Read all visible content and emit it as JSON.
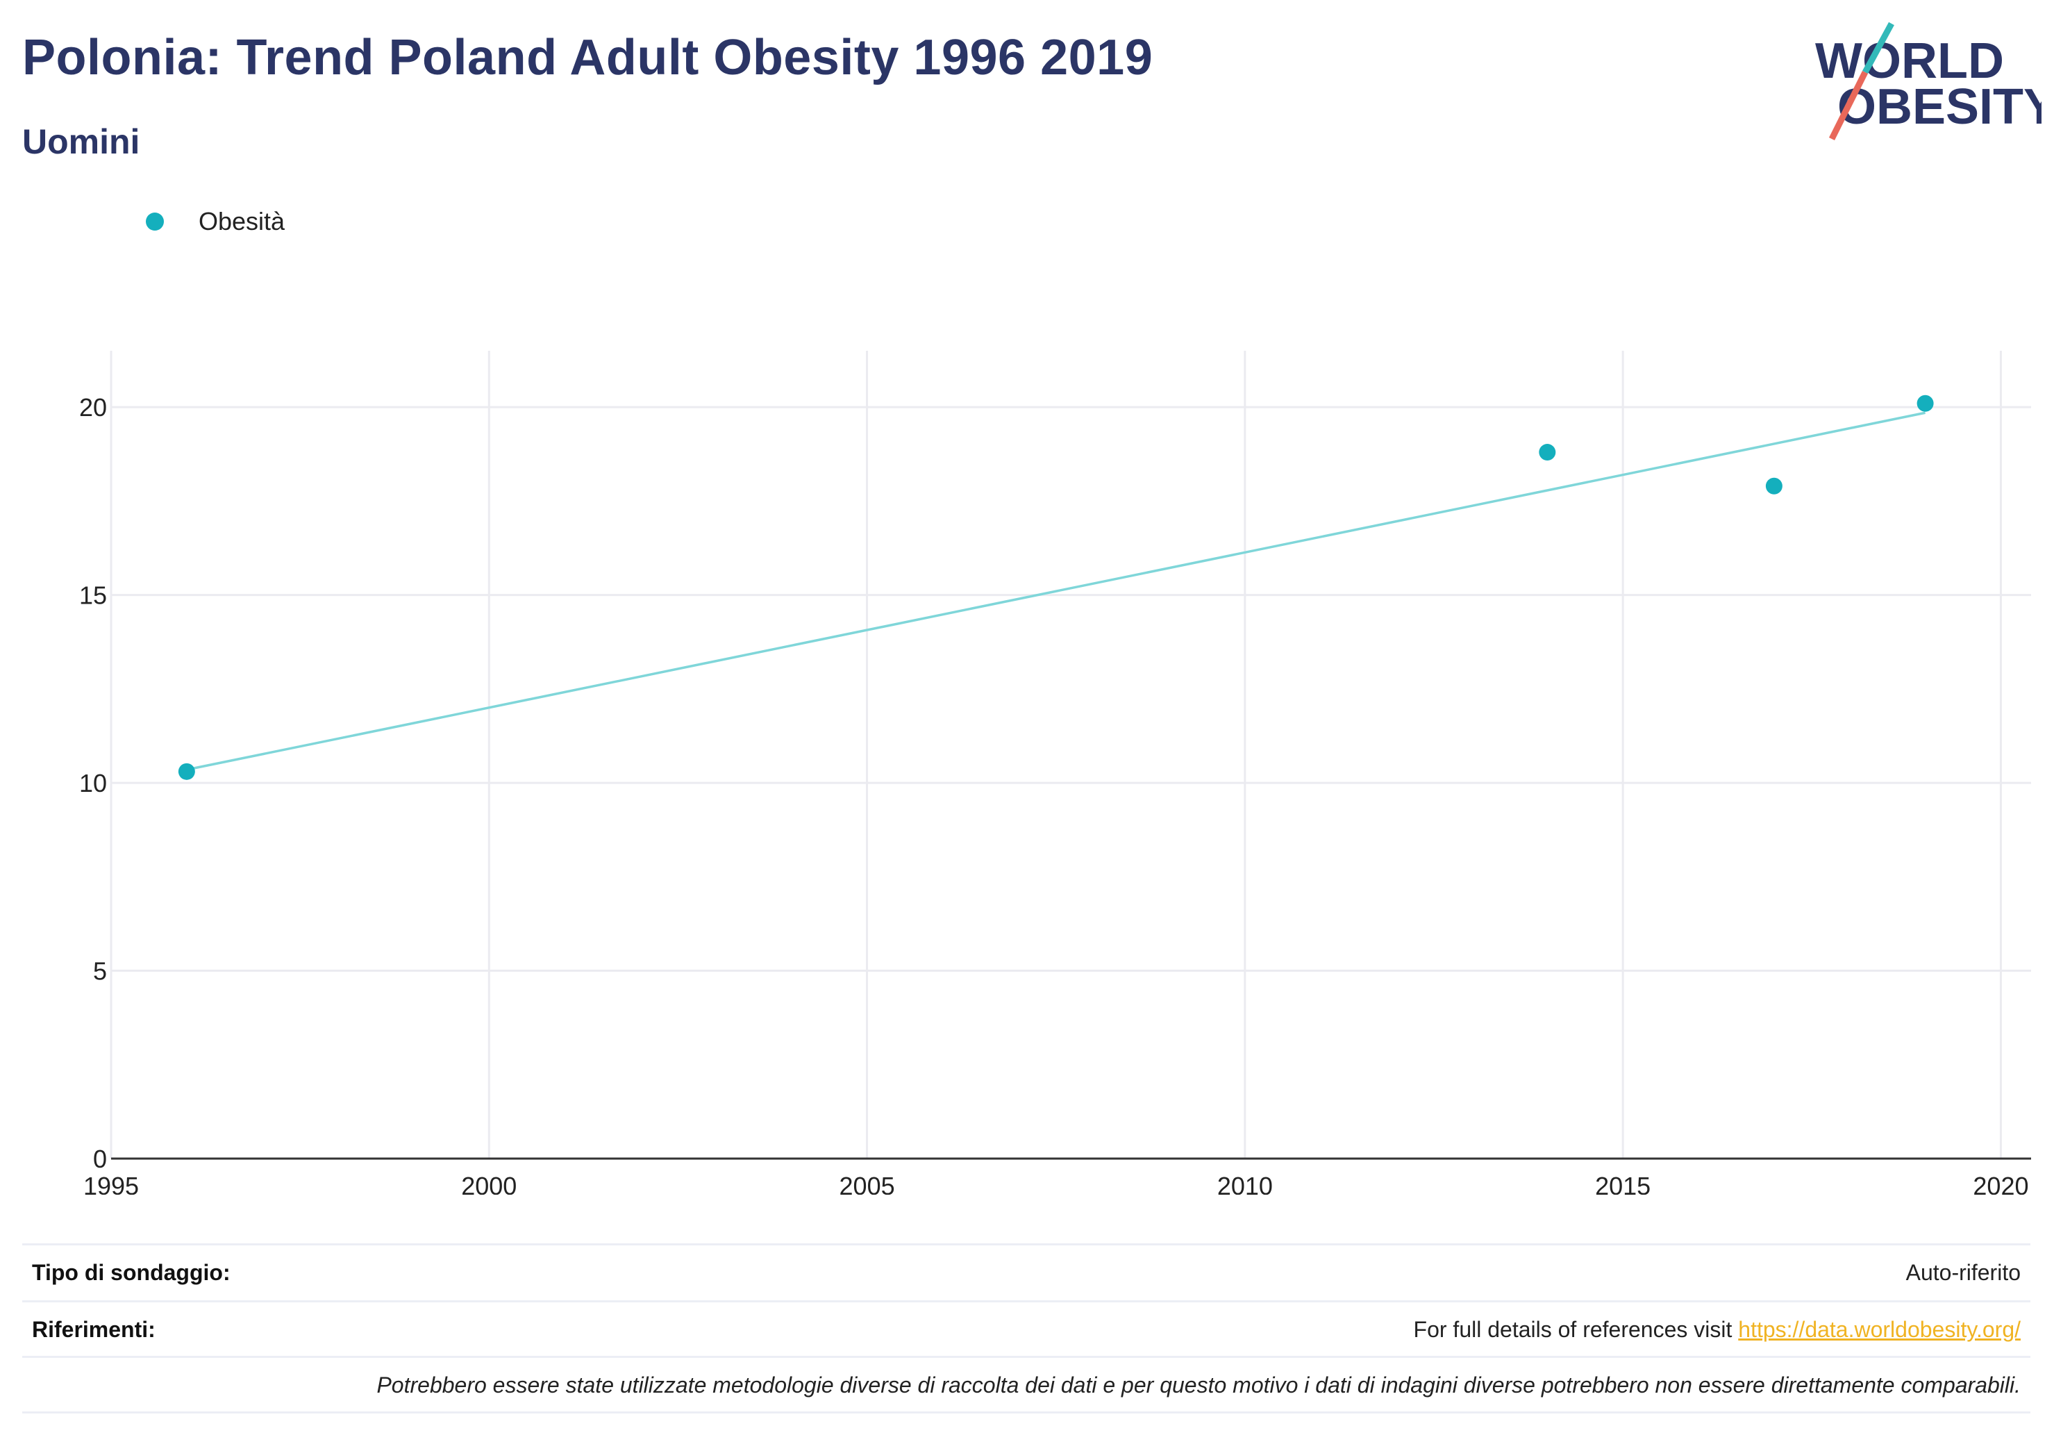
{
  "header": {
    "title": "Polonia: Trend Poland Adult Obesity 1996 2019",
    "subtitle": "Uomini"
  },
  "logo": {
    "line1": "WORLD",
    "line2": "OBESITY",
    "colors": {
      "text": "#2b3566",
      "slash_top": "#33b9b9",
      "slash_bottom": "#e8685a"
    }
  },
  "colors": {
    "marker": "#14afbd",
    "trendline": "#7fd6d9",
    "grid": "#ebebf0",
    "axis": "#333333",
    "title": "#2b3566",
    "link": "#f0b323"
  },
  "chart_data": {
    "type": "scatter",
    "title": "Polonia: Trend Poland Adult Obesity 1996 2019",
    "subtitle": "Uomini",
    "series": [
      {
        "name": "Obesità",
        "points": [
          {
            "x": 1996,
            "y": 10.3
          },
          {
            "x": 2014,
            "y": 18.8
          },
          {
            "x": 2017,
            "y": 17.9
          },
          {
            "x": 2019,
            "y": 20.1
          }
        ]
      }
    ],
    "trendline": {
      "x": [
        1996,
        2019
      ],
      "y": [
        10.35,
        19.85
      ]
    },
    "xlim": [
      1995,
      2020.4
    ],
    "ylim": [
      0,
      21.5
    ],
    "x_ticks": [
      1995,
      2000,
      2005,
      2010,
      2015,
      2020
    ],
    "y_ticks": [
      0,
      5,
      10,
      15,
      20
    ],
    "grid": true,
    "legend_position": "top-left"
  },
  "footer": {
    "survey_type_label": "Tipo di sondaggio:",
    "survey_type_value": "Auto-riferito",
    "references_label": "Riferimenti:",
    "references_text": "For full details of references visit",
    "references_link": "https://data.worldobesity.org/",
    "note": "Potrebbero essere state utilizzate metodologie diverse di raccolta dei dati e per questo motivo i dati di indagini diverse potrebbero non essere direttamente comparabili."
  }
}
